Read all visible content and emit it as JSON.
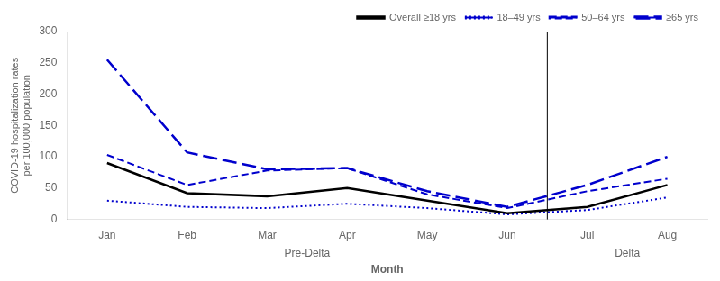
{
  "chart_data": {
    "type": "line",
    "categories": [
      "Jan",
      "Feb",
      "Mar",
      "Apr",
      "May",
      "Jun",
      "Jul",
      "Aug"
    ],
    "series": [
      {
        "name": "Overall ≥18 yrs",
        "color": "#000000",
        "line_style": "solid",
        "values": [
          90,
          42,
          37,
          50,
          30,
          10,
          20,
          55
        ]
      },
      {
        "name": "18–49 yrs",
        "color": "#0000CD",
        "line_style": "dotted",
        "values": [
          30,
          20,
          18,
          25,
          18,
          8,
          15,
          35
        ]
      },
      {
        "name": "50–64 yrs",
        "color": "#0000CD",
        "line_style": "dashed",
        "values": [
          103,
          55,
          78,
          82,
          40,
          18,
          45,
          65
        ]
      },
      {
        "name": "≥65 yrs",
        "color": "#0000CD",
        "line_style": "long_dashed",
        "values": [
          255,
          107,
          80,
          82,
          45,
          20,
          55,
          100
        ]
      }
    ],
    "ylabel": "COVID-19 hospitalization rates\nper 100,000 population",
    "xlabel": "Month",
    "ylim": [
      0,
      300
    ],
    "yticks": [
      0,
      50,
      100,
      150,
      200,
      250,
      300
    ],
    "vlines": [
      5.5
    ],
    "annotations": [
      {
        "text": "Pre-Delta",
        "x": 2.5
      },
      {
        "text": "Delta",
        "x": 6.5
      }
    ],
    "grid": false,
    "legend": "upper right"
  }
}
